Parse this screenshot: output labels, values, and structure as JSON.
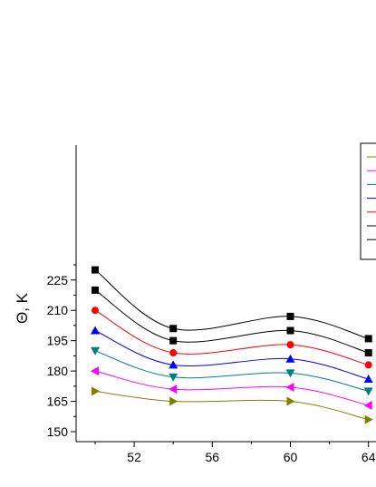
{
  "chart_data": {
    "type": "line",
    "title": "",
    "xlabel": "",
    "ylabel": "Θ, K",
    "xlim": [
      48,
      64
    ],
    "ylim": [
      147,
      235
    ],
    "xticks": [
      52,
      56,
      60,
      64
    ],
    "yticks": [
      150,
      165,
      180,
      195,
      210,
      225
    ],
    "grid": false,
    "legend_position": "top-right",
    "series": [
      {
        "color": "#000000",
        "marker": "square",
        "x": [
          50,
          54,
          60,
          64
        ],
        "y": [
          230,
          201,
          207,
          196
        ]
      },
      {
        "color": "#000000",
        "marker": "square",
        "x": [
          50,
          54,
          60,
          64
        ],
        "y": [
          220,
          195,
          200,
          189
        ]
      },
      {
        "color": "#ff0000",
        "marker": "circle",
        "x": [
          50,
          54,
          60,
          64
        ],
        "y": [
          210,
          189,
          193,
          183
        ]
      },
      {
        "color": "#0000ff",
        "marker": "triangle-up",
        "x": [
          50,
          54,
          60,
          64
        ],
        "y": [
          200,
          183,
          186,
          176
        ]
      },
      {
        "color": "#008080",
        "marker": "triangle-down",
        "x": [
          50,
          54,
          60,
          64
        ],
        "y": [
          190,
          177,
          179,
          170
        ]
      },
      {
        "color": "#ff00ff",
        "marker": "triangle-left",
        "x": [
          50,
          54,
          60,
          64
        ],
        "y": [
          180,
          171,
          172,
          163
        ]
      },
      {
        "color": "#808000",
        "marker": "triangle-right",
        "x": [
          50,
          54,
          60,
          64
        ],
        "y": [
          170,
          165,
          165,
          156
        ]
      }
    ],
    "legend_colors": [
      "#808000",
      "#ff00ff",
      "#008080",
      "#0000ff",
      "#ff0000",
      "#000000",
      "#000000"
    ]
  }
}
